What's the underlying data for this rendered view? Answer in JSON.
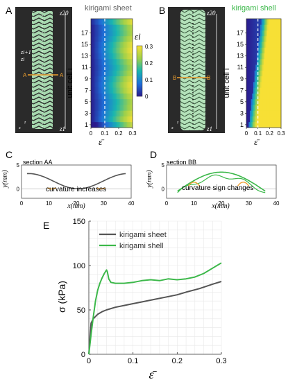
{
  "panels": {
    "A": {
      "letter": "A",
      "title": "kirigami sheet",
      "section_marker": "A",
      "colorbar_symbol": "εi"
    },
    "B": {
      "letter": "B",
      "title": "kirigami shell",
      "section_marker": "B"
    },
    "C": {
      "letter": "C",
      "title": "section AA",
      "annotation": "curvature increases"
    },
    "D": {
      "letter": "D",
      "title": "section BB",
      "annotation": "curvature sign changes"
    },
    "E": {
      "letter": "E"
    }
  },
  "photo_labels": {
    "z20": "z20",
    "z_i_plus": "zi+1",
    "z_i": "zi",
    "z1": "z1",
    "x": "x",
    "z": "z"
  },
  "colors": {
    "sheet": "#555555",
    "shell": "#3cb84a",
    "highlight": "#f0a030",
    "specimen": "#a6d8ae",
    "photo_bg": "#2a2a2a"
  },
  "heatmap_axes": {
    "ylabel": "unit cell i",
    "yticks": [
      "1",
      "3",
      "5",
      "7",
      "9",
      "11",
      "13",
      "15",
      "17"
    ],
    "xticks": [
      "0",
      "0.1",
      "0.2",
      "0.3"
    ],
    "xlabel": "ε̄",
    "colorbar_ticks": [
      "0",
      "0.1",
      "0.2",
      "0.3"
    ]
  },
  "profile_axes": {
    "ylabel": "y(mm)",
    "xlabel": "x(mm)",
    "xticks": [
      "0",
      "10",
      "20",
      "30",
      "40"
    ],
    "yticks": [
      "0",
      "5"
    ]
  },
  "chart_data": {
    "type": "line",
    "xlabel": "ε̄",
    "ylabel": "σ (kPa)",
    "xlim": [
      0,
      0.3
    ],
    "ylim": [
      0,
      150
    ],
    "xticks": [
      "0",
      "0.1",
      "0.2",
      "0.3"
    ],
    "yticks": [
      "0",
      "50",
      "100",
      "150"
    ],
    "grid": true,
    "legend_position": "top-left",
    "series": [
      {
        "name": "kirigami sheet",
        "color": "#555555",
        "x": [
          0,
          0.005,
          0.01,
          0.02,
          0.03,
          0.04,
          0.06,
          0.08,
          0.1,
          0.12,
          0.15,
          0.18,
          0.2,
          0.22,
          0.25,
          0.28,
          0.3
        ],
        "y": [
          0,
          35,
          40,
          45,
          48,
          50,
          53,
          55,
          57,
          59,
          62,
          65,
          67,
          70,
          74,
          79,
          82
        ]
      },
      {
        "name": "kirigami shell",
        "color": "#3cb84a",
        "x": [
          0,
          0.005,
          0.01,
          0.015,
          0.02,
          0.025,
          0.03,
          0.035,
          0.04,
          0.042,
          0.045,
          0.05,
          0.06,
          0.08,
          0.1,
          0.12,
          0.14,
          0.16,
          0.18,
          0.2,
          0.22,
          0.24,
          0.26,
          0.28,
          0.3
        ],
        "y": [
          0,
          22,
          42,
          60,
          72,
          80,
          86,
          91,
          95,
          93,
          85,
          81,
          80,
          80,
          81,
          83,
          84,
          83,
          85,
          84,
          85,
          87,
          91,
          97,
          103
        ]
      }
    ]
  }
}
